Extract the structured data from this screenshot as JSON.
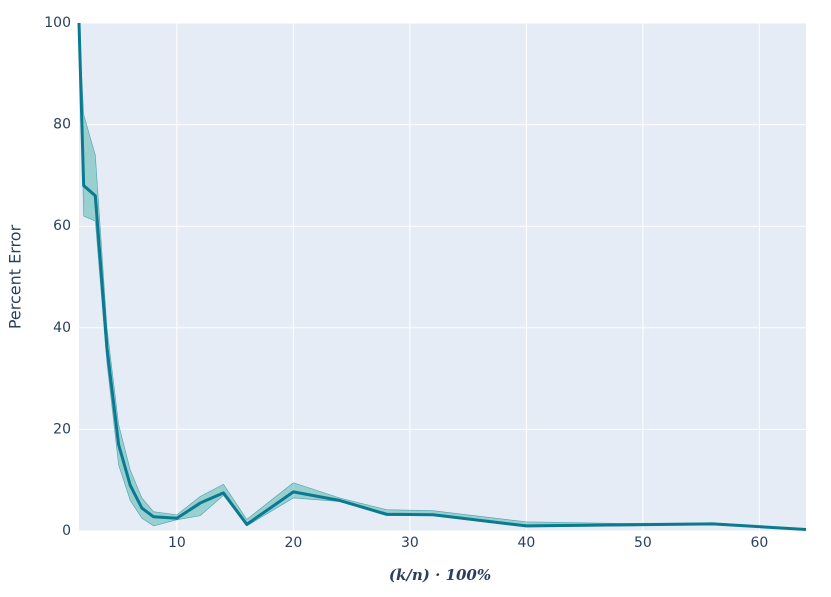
{
  "chart_data": {
    "type": "line",
    "x_label": "(k/n) · 100%",
    "y_label": "Percent Error",
    "x": [
      1.6,
      2,
      3,
      4,
      5,
      6,
      7,
      8,
      10,
      12,
      14,
      16,
      20,
      24,
      28,
      32,
      40,
      48,
      56,
      64
    ],
    "values": [
      100,
      68,
      66,
      36,
      17,
      9,
      4.5,
      2.8,
      2.5,
      5.5,
      7.5,
      1.3,
      7.7,
      6,
      3.3,
      3.2,
      1,
      1.2,
      1.4,
      0.3
    ],
    "band_upper": [
      100,
      82,
      74,
      40,
      21,
      12,
      6.5,
      3.8,
      3.2,
      6.8,
      9.2,
      2.3,
      9.5,
      6.5,
      4.2,
      4,
      1.8,
      1.5,
      1.6,
      0.3
    ],
    "band_lower": [
      100,
      62,
      61,
      33,
      13,
      6,
      2.5,
      1,
      2.2,
      3,
      7,
      1,
      6.5,
      5.8,
      3,
      3,
      0.8,
      1,
      1.2,
      0.3
    ],
    "color": "#0b7a90",
    "band_color": "#3aaea0",
    "xlim": [
      1.6,
      64
    ],
    "xticks": [
      10,
      20,
      30,
      40,
      50,
      60
    ],
    "ylim": [
      0,
      100
    ],
    "yticks": [
      0,
      20,
      40,
      60,
      80,
      100
    ],
    "grid": true
  }
}
